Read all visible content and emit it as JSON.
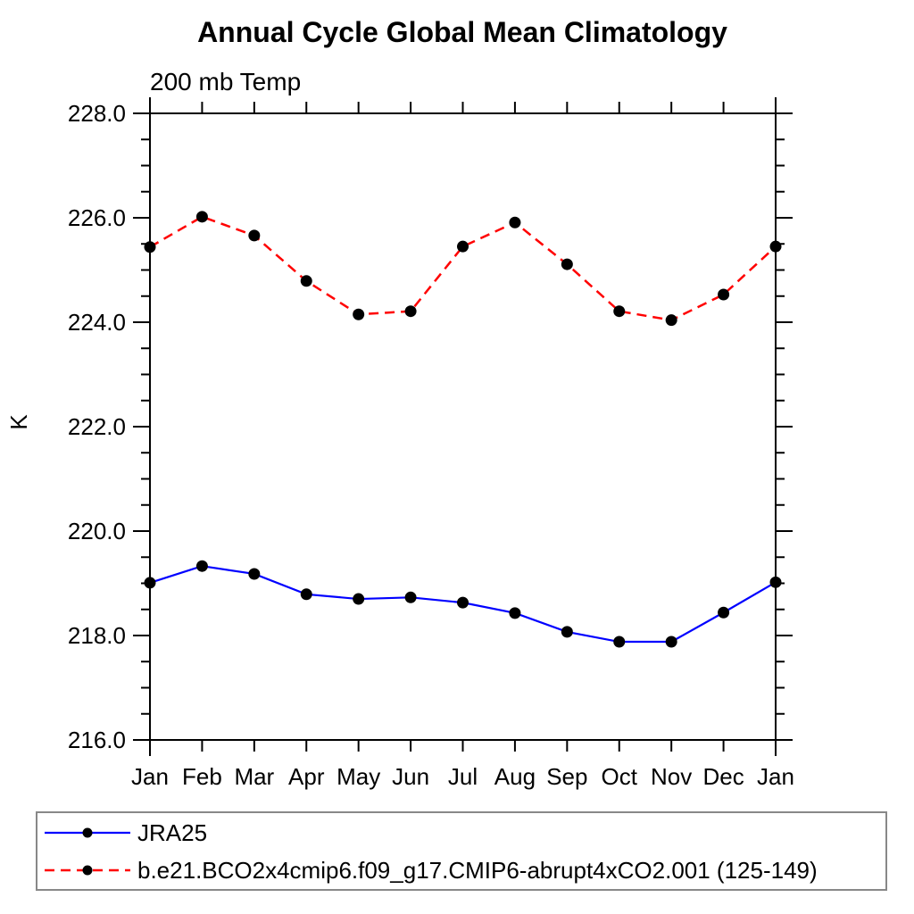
{
  "chart_data": {
    "type": "line",
    "title": "Annual Cycle Global Mean Climatology",
    "subtitle": "200 mb Temp",
    "ylabel": "K",
    "xlabel": "",
    "grid": false,
    "legend_position": "bottom-left-box",
    "x_categories": [
      "Jan",
      "Feb",
      "Mar",
      "Apr",
      "May",
      "Jun",
      "Jul",
      "Aug",
      "Sep",
      "Oct",
      "Nov",
      "Dec",
      "Jan"
    ],
    "ylim": [
      216.0,
      228.0
    ],
    "ytick_major_interval": 2.0,
    "ytick_minor_interval": 0.5,
    "ytick_values": [
      216.0,
      218.0,
      220.0,
      222.0,
      224.0,
      226.0,
      228.0
    ],
    "ytick_labels": [
      "216.0",
      "218.0",
      "220.0",
      "222.0",
      "224.0",
      "226.0",
      "228.0"
    ],
    "series": [
      {
        "name": "JRA25",
        "color": "#0000ff",
        "line_style": "solid",
        "marker": "filled-circle",
        "marker_color": "#000000",
        "values": [
          219.01,
          219.33,
          219.18,
          218.79,
          218.7,
          218.73,
          218.63,
          218.43,
          218.07,
          217.88,
          217.88,
          218.44,
          219.02
        ]
      },
      {
        "name": "b.e21.BCO2x4cmip6.f09_g17.CMIP6-abrupt4xCO2.001 (125-149)",
        "color": "#ff0000",
        "line_style": "dashed",
        "marker": "filled-circle",
        "marker_color": "#000000",
        "values": [
          225.44,
          226.02,
          225.66,
          224.79,
          224.15,
          224.21,
          225.45,
          225.91,
          225.11,
          224.21,
          224.04,
          224.53,
          225.45
        ]
      }
    ]
  }
}
